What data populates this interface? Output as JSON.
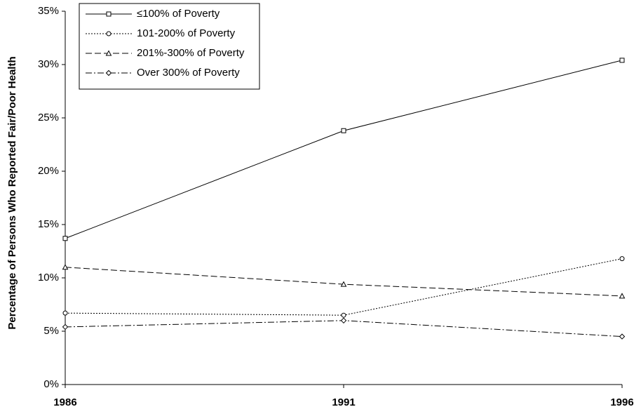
{
  "chart_data": {
    "type": "line",
    "y_label": "Percentage of Persons Who Reported Fair/Poor Health",
    "categories": [
      "1986",
      "1991",
      "1996"
    ],
    "ylim": [
      0,
      35
    ],
    "yticks": [
      {
        "value": 0,
        "label": "0%"
      },
      {
        "value": 5,
        "label": "5%"
      },
      {
        "value": 10,
        "label": "10%"
      },
      {
        "value": 15,
        "label": "15%"
      },
      {
        "value": 20,
        "label": "20%"
      },
      {
        "value": 25,
        "label": "25%"
      },
      {
        "value": 30,
        "label": "30%"
      },
      {
        "value": 35,
        "label": "35%"
      }
    ],
    "grid": false,
    "legend": "top-left",
    "series": [
      {
        "name": "≤100% of Poverty",
        "color": "#000000",
        "marker": "square",
        "dash": "solid",
        "values": [
          13.7,
          23.8,
          30.4
        ]
      },
      {
        "name": "101-200% of Poverty",
        "color": "#000000",
        "marker": "circle",
        "dash": "dotted",
        "values": [
          6.7,
          6.5,
          11.8
        ]
      },
      {
        "name": "201%-300% of Poverty",
        "color": "#000000",
        "marker": "triangle",
        "dash": "dashed",
        "values": [
          11.0,
          9.4,
          8.3
        ]
      },
      {
        "name": "Over 300% of Poverty",
        "color": "#000000",
        "marker": "diamond",
        "dash": "dashdot",
        "values": [
          5.4,
          6.0,
          4.5
        ]
      }
    ]
  }
}
